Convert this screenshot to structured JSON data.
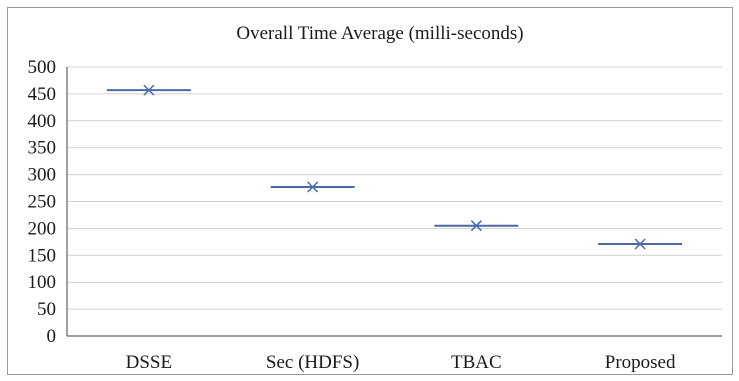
{
  "chart_data": {
    "type": "scatter",
    "title": "Overall Time Average (milli-seconds)",
    "xlabel": "",
    "ylabel": "",
    "categories": [
      "DSSE",
      "Sec (HDFS)",
      "TBAC",
      "Proposed"
    ],
    "series": [
      {
        "values": [
          457,
          277,
          205,
          171
        ]
      }
    ],
    "ylim": [
      0,
      500
    ],
    "ytick_step": 50,
    "yticks": [
      "0",
      "50",
      "100",
      "150",
      "200",
      "250",
      "300",
      "350",
      "400",
      "450",
      "500"
    ],
    "grid": true,
    "marker": "x-with-horizontal-bar",
    "colors": {
      "marker": "#4a6aa5",
      "grid": "#d0d0d0",
      "axis": "#404040",
      "border": "#9a9a9a"
    }
  }
}
